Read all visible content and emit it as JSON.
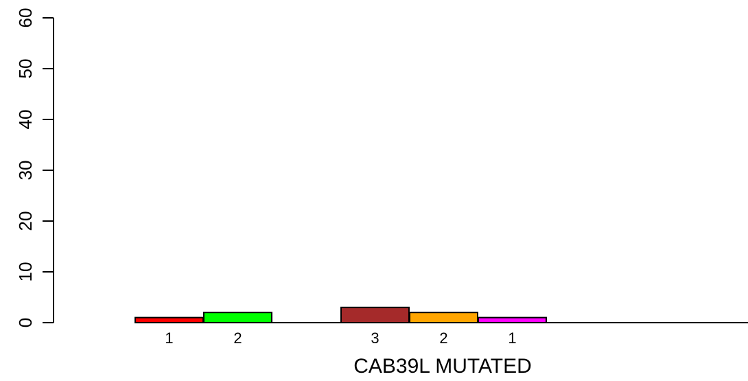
{
  "chart_data": {
    "type": "bar",
    "title": "",
    "xlabel": "CAB39L MUTATED",
    "ylabel": "",
    "ylim": [
      0,
      60
    ],
    "yticks": [
      0,
      10,
      20,
      30,
      40,
      50,
      60
    ],
    "bars": [
      {
        "value": 1,
        "label": "1",
        "color": "#FF0000"
      },
      {
        "value": 2,
        "label": "2",
        "color": "#00FF00"
      },
      {
        "value": 3,
        "label": "3",
        "color": "#A52A2A"
      },
      {
        "value": 2,
        "label": "2",
        "color": "#FFA500"
      },
      {
        "value": 1,
        "label": "1",
        "color": "#FF00FF"
      }
    ],
    "grid": false,
    "legend": "none"
  }
}
